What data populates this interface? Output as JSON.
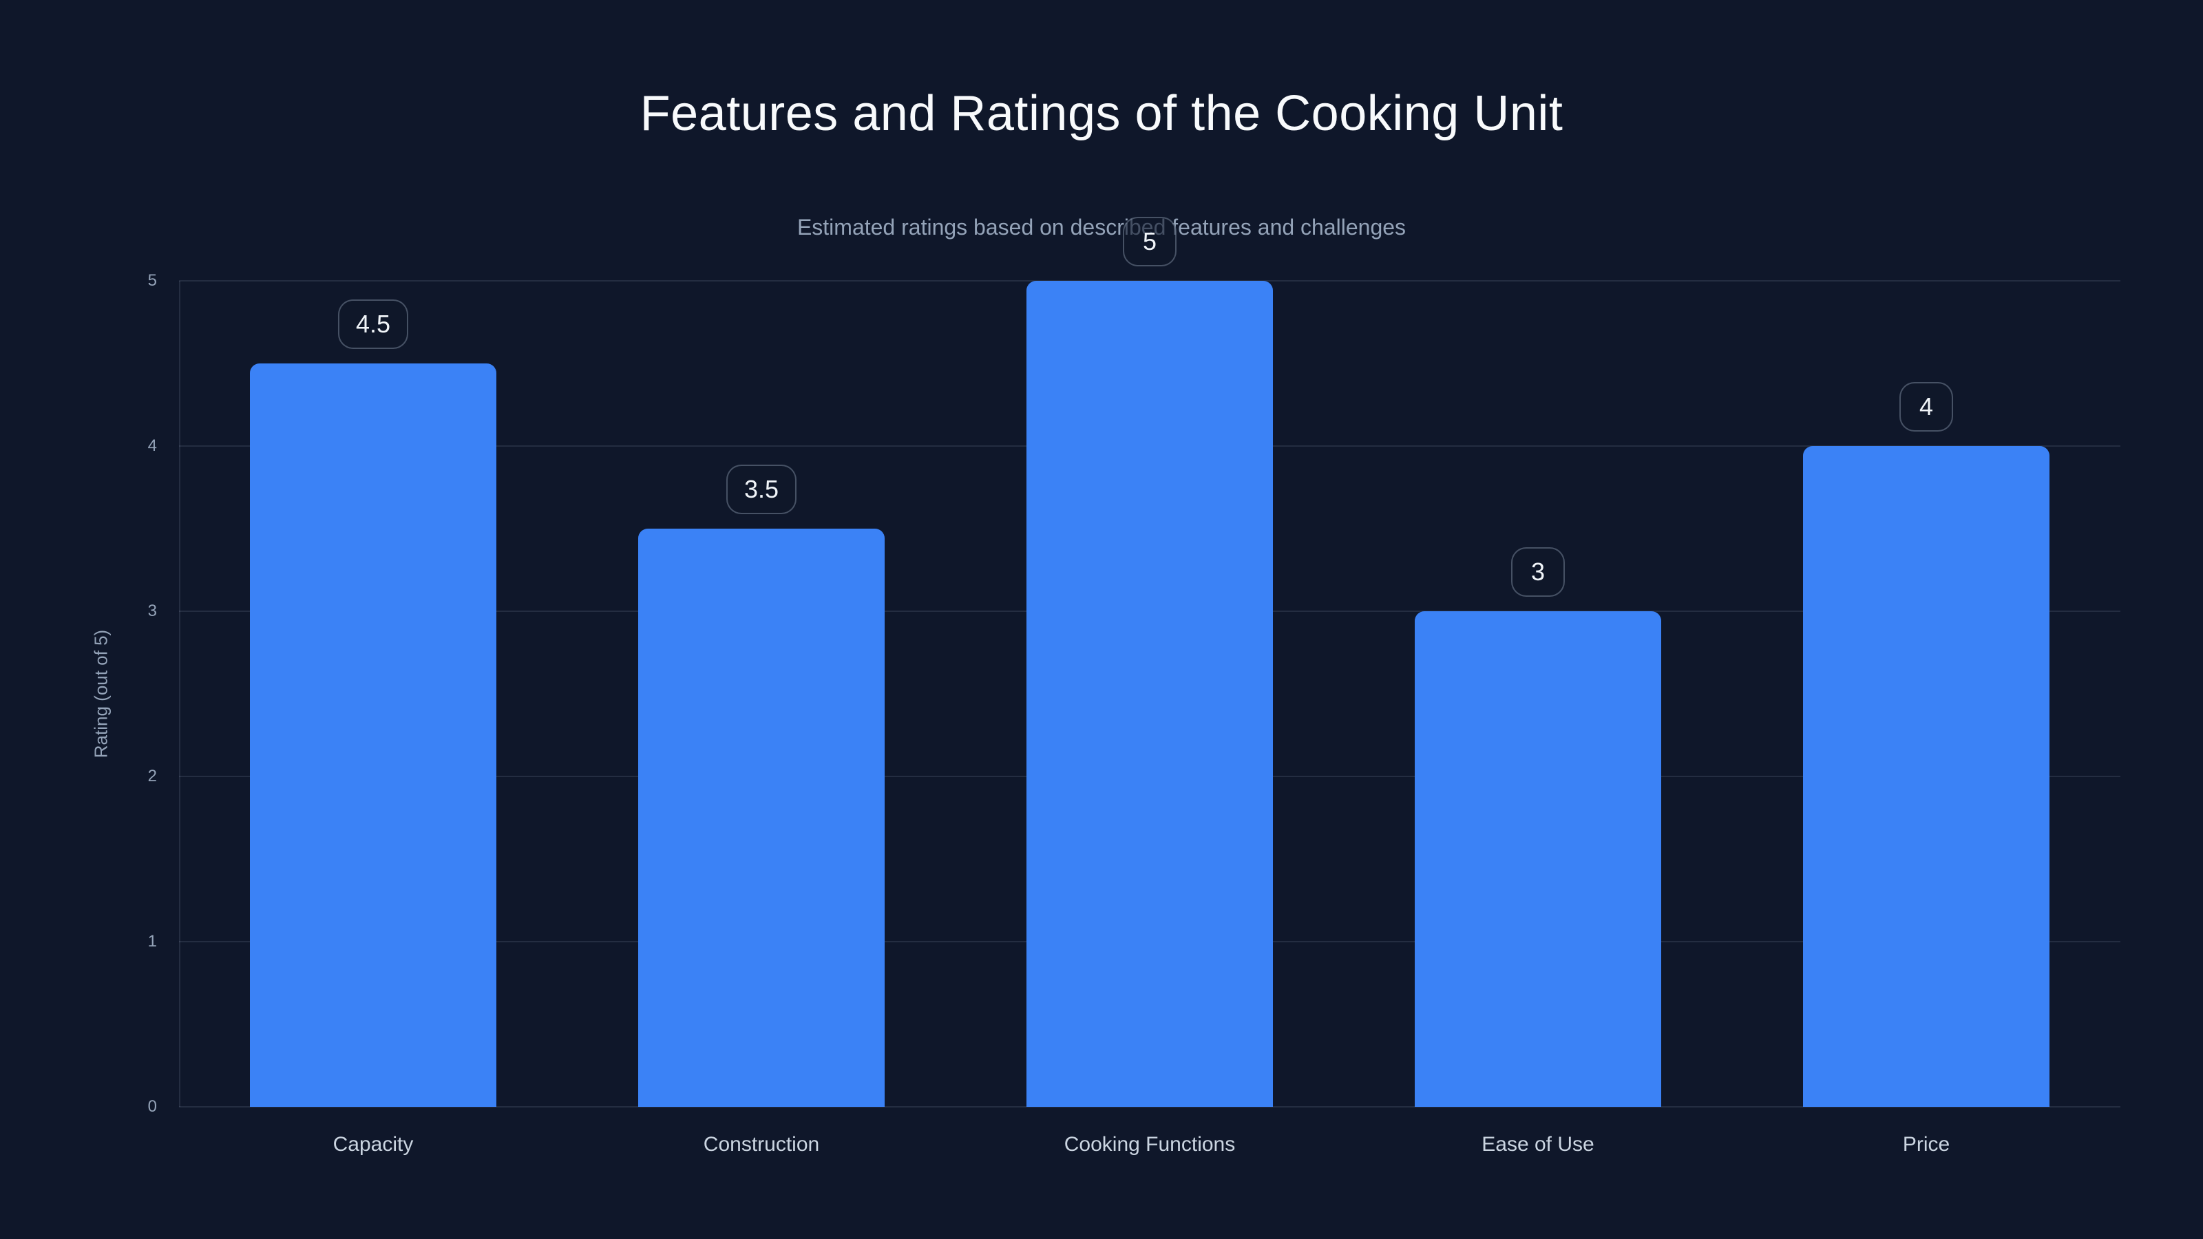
{
  "chart_data": {
    "type": "bar",
    "title": "Features and Ratings of the Cooking Unit",
    "subtitle": "Estimated ratings based on described features and challenges",
    "categories": [
      "Capacity",
      "Construction",
      "Cooking Functions",
      "Ease of Use",
      "Price"
    ],
    "values": [
      4.5,
      3.5,
      5,
      3,
      4
    ],
    "value_labels": [
      "4.5",
      "3.5",
      "5",
      "3",
      "4"
    ],
    "xlabel": "",
    "ylabel": "Rating (out of 5)",
    "ylim": [
      0,
      5
    ],
    "yticks": [
      0,
      1,
      2,
      3,
      4,
      5
    ],
    "grid": true,
    "legend": false,
    "colors": {
      "background": "#0f172a",
      "bar": "#3b82f6",
      "title_text": "#f8fafc",
      "subtitle_text": "#94a3b8",
      "tick_text": "#94a3b8",
      "category_text": "#cbd5e1",
      "gridline": "rgba(148,163,184,0.16)",
      "badge_border": "rgba(148,163,184,0.42)",
      "badge_text": "#f1f5f9"
    }
  }
}
